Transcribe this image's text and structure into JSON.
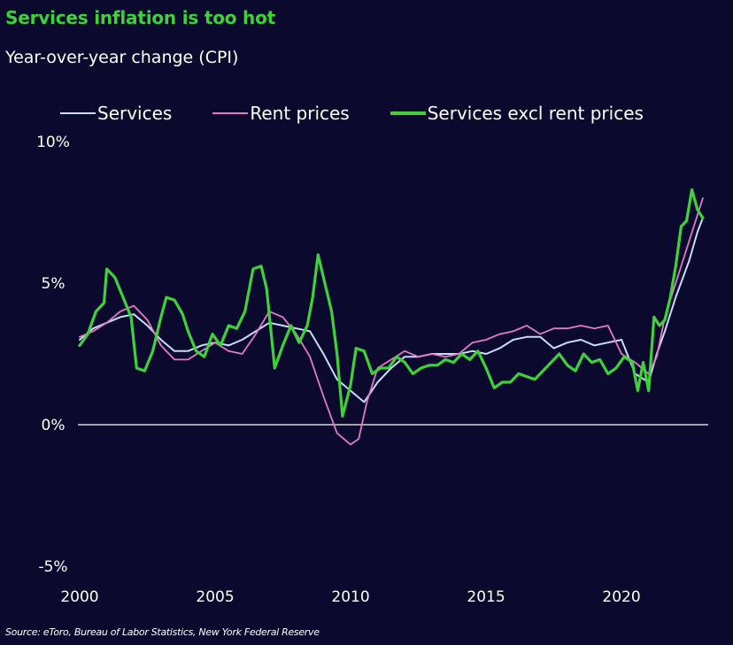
{
  "header": {
    "title": "Services inflation is too hot",
    "subtitle": "Year-over-year change (CPI)"
  },
  "source": "Source: eToro, Bureau of Labor Statistics, New York Federal Reserve",
  "chart_data": {
    "type": "line",
    "title": "Services inflation is too hot",
    "subtitle": "Year-over-year change (CPI)",
    "xlabel": "",
    "ylabel": "",
    "xlim": [
      2000,
      2023.2
    ],
    "ylim": [
      -5,
      10
    ],
    "x_ticks": [
      2000,
      2005,
      2010,
      2015,
      2020
    ],
    "y_ticks": [
      {
        "value": 10,
        "label": "10%"
      },
      {
        "value": 5,
        "label": "5%"
      },
      {
        "value": 0,
        "label": "0%"
      },
      {
        "value": -5,
        "label": "-5%"
      }
    ],
    "grid": false,
    "legend_position": "top",
    "series": [
      {
        "name": "Services",
        "color": "#c8dcf5",
        "width": 2,
        "x": [
          2000,
          2000.5,
          2001,
          2001.5,
          2002,
          2002.5,
          2003,
          2003.5,
          2004,
          2004.5,
          2005,
          2005.5,
          2006,
          2006.5,
          2007,
          2007.5,
          2008,
          2008.5,
          2009,
          2009.5,
          2010,
          2010.5,
          2011,
          2011.5,
          2012,
          2012.5,
          2013,
          2013.5,
          2014,
          2014.5,
          2015,
          2015.5,
          2016,
          2016.5,
          2017,
          2017.5,
          2018,
          2018.5,
          2019,
          2019.5,
          2020,
          2020.5,
          2021,
          2021.3,
          2021.6,
          2022,
          2022.5,
          2022.8,
          2023
        ],
        "y": [
          3.0,
          3.4,
          3.6,
          3.8,
          3.9,
          3.5,
          3.0,
          2.6,
          2.6,
          2.8,
          2.9,
          2.8,
          3.0,
          3.3,
          3.6,
          3.5,
          3.4,
          3.3,
          2.5,
          1.6,
          1.2,
          0.8,
          1.5,
          2.0,
          2.4,
          2.4,
          2.5,
          2.5,
          2.5,
          2.6,
          2.5,
          2.7,
          3.0,
          3.1,
          3.1,
          2.7,
          2.9,
          3.0,
          2.8,
          2.9,
          3.0,
          1.8,
          1.5,
          2.5,
          3.3,
          4.5,
          5.8,
          6.8,
          7.3
        ]
      },
      {
        "name": "Rent prices",
        "color": "#e07bc4",
        "width": 1.8,
        "x": [
          2000,
          2000.5,
          2001,
          2001.5,
          2002,
          2002.5,
          2003,
          2003.5,
          2004,
          2004.5,
          2005,
          2005.5,
          2006,
          2006.5,
          2007,
          2007.5,
          2008,
          2008.5,
          2009,
          2009.5,
          2010,
          2010.3,
          2010.6,
          2011,
          2011.5,
          2012,
          2012.5,
          2013,
          2013.5,
          2014,
          2014.5,
          2015,
          2015.5,
          2016,
          2016.5,
          2017,
          2017.5,
          2018,
          2018.5,
          2019,
          2019.5,
          2020,
          2020.5,
          2021,
          2021.3,
          2021.6,
          2022,
          2022.5,
          2022.8,
          2023
        ],
        "y": [
          3.1,
          3.3,
          3.6,
          4.0,
          4.2,
          3.7,
          2.8,
          2.3,
          2.3,
          2.6,
          2.9,
          2.6,
          2.5,
          3.2,
          4.0,
          3.8,
          3.2,
          2.4,
          1.0,
          -0.3,
          -0.7,
          -0.5,
          0.8,
          2.0,
          2.3,
          2.6,
          2.4,
          2.5,
          2.4,
          2.5,
          2.9,
          3.0,
          3.2,
          3.3,
          3.5,
          3.2,
          3.4,
          3.4,
          3.5,
          3.4,
          3.5,
          2.5,
          2.2,
          1.8,
          2.4,
          3.8,
          5.0,
          6.5,
          7.4,
          8.0
        ]
      },
      {
        "name": "Services excl rent prices",
        "color": "#3fd13a",
        "width": 3.2,
        "x": [
          2000,
          2000.3,
          2000.6,
          2000.9,
          2001,
          2001.3,
          2001.6,
          2001.9,
          2002.1,
          2002.4,
          2002.7,
          2003,
          2003.2,
          2003.5,
          2003.8,
          2004,
          2004.3,
          2004.6,
          2004.9,
          2005.2,
          2005.5,
          2005.8,
          2006.1,
          2006.4,
          2006.7,
          2006.9,
          2007.2,
          2007.5,
          2007.8,
          2008.1,
          2008.4,
          2008.6,
          2008.8,
          2009,
          2009.3,
          2009.5,
          2009.7,
          2010,
          2010.2,
          2010.5,
          2010.8,
          2011.1,
          2011.4,
          2011.7,
          2012,
          2012.3,
          2012.6,
          2012.9,
          2013.2,
          2013.5,
          2013.8,
          2014.1,
          2014.4,
          2014.7,
          2015,
          2015.3,
          2015.6,
          2015.9,
          2016.2,
          2016.5,
          2016.8,
          2017.1,
          2017.4,
          2017.7,
          2018,
          2018.3,
          2018.6,
          2018.9,
          2019.2,
          2019.5,
          2019.8,
          2020.1,
          2020.4,
          2020.6,
          2020.8,
          2021,
          2021.2,
          2021.4,
          2021.6,
          2021.8,
          2022,
          2022.2,
          2022.4,
          2022.6,
          2022.8,
          2023
        ],
        "y": [
          2.8,
          3.2,
          4.0,
          4.3,
          5.5,
          5.2,
          4.5,
          3.8,
          2.0,
          1.9,
          2.6,
          3.8,
          4.5,
          4.4,
          3.9,
          3.3,
          2.6,
          2.4,
          3.2,
          2.8,
          3.5,
          3.4,
          4.0,
          5.5,
          5.6,
          4.8,
          2.0,
          2.8,
          3.5,
          2.9,
          3.5,
          4.5,
          6.0,
          5.2,
          4.0,
          2.5,
          0.3,
          1.4,
          2.7,
          2.6,
          1.8,
          2.0,
          2.0,
          2.4,
          2.2,
          1.8,
          2.0,
          2.1,
          2.1,
          2.3,
          2.2,
          2.5,
          2.3,
          2.6,
          2.0,
          1.3,
          1.5,
          1.5,
          1.8,
          1.7,
          1.6,
          1.9,
          2.2,
          2.5,
          2.1,
          1.9,
          2.5,
          2.2,
          2.3,
          1.8,
          2.0,
          2.4,
          2.2,
          1.2,
          2.2,
          1.2,
          3.8,
          3.5,
          3.7,
          4.5,
          5.6,
          7.0,
          7.2,
          8.3,
          7.6,
          7.3
        ]
      }
    ]
  }
}
